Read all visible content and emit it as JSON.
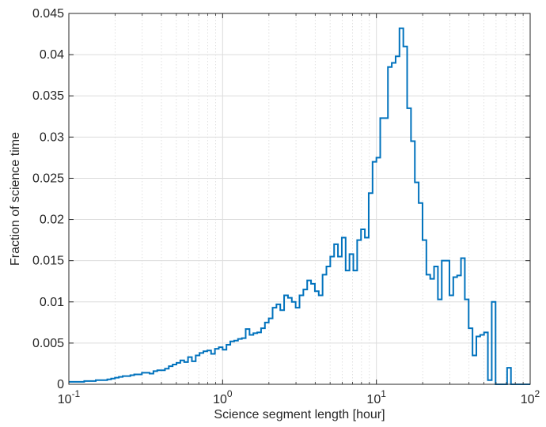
{
  "chart_data": {
    "type": "line",
    "subtype": "stairs-histogram",
    "title": "",
    "xlabel": "Science segment length [hour]",
    "ylabel": "Fraction of science time",
    "xscale": "log",
    "xlim": [
      0.1,
      100
    ],
    "ylim": [
      0,
      0.045
    ],
    "grid": true,
    "minor_grid_x": true,
    "legend": "none",
    "line_color": "#0072BD",
    "x_ticks": [
      {
        "base": "10",
        "exp": "-1",
        "value": 0.1
      },
      {
        "base": "10",
        "exp": "0",
        "value": 1
      },
      {
        "base": "10",
        "exp": "1",
        "value": 10
      },
      {
        "base": "10",
        "exp": "2",
        "value": 100
      }
    ],
    "y_ticks": [
      {
        "label": "0",
        "value": 0
      },
      {
        "label": "0.005",
        "value": 0.005
      },
      {
        "label": "0.01",
        "value": 0.01
      },
      {
        "label": "0.015",
        "value": 0.015
      },
      {
        "label": "0.02",
        "value": 0.02
      },
      {
        "label": "0.025",
        "value": 0.025
      },
      {
        "label": "0.03",
        "value": 0.03
      },
      {
        "label": "0.035",
        "value": 0.035
      },
      {
        "label": "0.04",
        "value": 0.04
      },
      {
        "label": "0.045",
        "value": 0.045
      }
    ],
    "bins_per_decade": 40,
    "values": [
      0.0003,
      0.0003,
      0.0003,
      0.0003,
      0.0004,
      0.0004,
      0.0004,
      0.0005,
      0.0005,
      0.0005,
      0.0006,
      0.0007,
      0.0008,
      0.0009,
      0.001,
      0.001,
      0.0011,
      0.0012,
      0.0012,
      0.0014,
      0.0014,
      0.0013,
      0.0016,
      0.0017,
      0.0017,
      0.0019,
      0.0022,
      0.0024,
      0.0026,
      0.0029,
      0.0027,
      0.0033,
      0.0028,
      0.0035,
      0.0038,
      0.004,
      0.0041,
      0.0037,
      0.0043,
      0.0045,
      0.0042,
      0.0048,
      0.0052,
      0.0053,
      0.0055,
      0.0056,
      0.0067,
      0.006,
      0.0062,
      0.0063,
      0.0068,
      0.0075,
      0.008,
      0.0093,
      0.0097,
      0.009,
      0.0108,
      0.0105,
      0.01,
      0.0093,
      0.0108,
      0.0115,
      0.0126,
      0.0122,
      0.0113,
      0.0108,
      0.0133,
      0.0143,
      0.0155,
      0.017,
      0.0155,
      0.0178,
      0.0138,
      0.0158,
      0.0138,
      0.0175,
      0.0188,
      0.0178,
      0.0232,
      0.027,
      0.0275,
      0.0323,
      0.0323,
      0.0385,
      0.039,
      0.0398,
      0.0432,
      0.041,
      0.0335,
      0.0295,
      0.0245,
      0.022,
      0.0175,
      0.0133,
      0.0128,
      0.0143,
      0.0103,
      0.015,
      0.015,
      0.0108,
      0.013,
      0.0132,
      0.0153,
      0.0103,
      0.0068,
      0.0035,
      0.0058,
      0.006,
      0.0063,
      0.0005,
      0.01,
      0.0,
      0.0,
      0.0,
      0.002,
      0.0,
      0.0,
      0.0,
      0.0,
      0.0
    ]
  }
}
